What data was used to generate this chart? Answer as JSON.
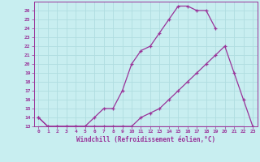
{
  "xlabel": "Windchill (Refroidissement éolien,°C)",
  "xlim": [
    -0.5,
    23.5
  ],
  "ylim": [
    13,
    27
  ],
  "yticks": [
    13,
    14,
    15,
    16,
    17,
    18,
    19,
    20,
    21,
    22,
    23,
    24,
    25,
    26
  ],
  "xticks": [
    0,
    1,
    2,
    3,
    4,
    5,
    6,
    7,
    8,
    9,
    10,
    11,
    12,
    13,
    14,
    15,
    16,
    17,
    18,
    19,
    20,
    21,
    22,
    23
  ],
  "bg_color": "#c8eef0",
  "line_color": "#993399",
  "grid_color": "#b0dde0",
  "line1_x": [
    0,
    1,
    2,
    3,
    4,
    5,
    6,
    7,
    8,
    9,
    10,
    11,
    12,
    13,
    14,
    15,
    16,
    17,
    18,
    19
  ],
  "line1_y": [
    14,
    13,
    13,
    13,
    13,
    13,
    14,
    15,
    15,
    17,
    20,
    21.5,
    22,
    23.5,
    25,
    26.5,
    26.5,
    26,
    26,
    24
  ],
  "line2_x": [
    0,
    1,
    2,
    3,
    4,
    5,
    6,
    7,
    8,
    9,
    10,
    11,
    12,
    13,
    14,
    15,
    16,
    17,
    18,
    19,
    20,
    21,
    22,
    23
  ],
  "line2_y": [
    14,
    13,
    13,
    13,
    13,
    13,
    13,
    13,
    13,
    13,
    13,
    14,
    14.5,
    15,
    16,
    17,
    18,
    19,
    20,
    21,
    22,
    19,
    16,
    13
  ],
  "line3_x": [
    0,
    1,
    2,
    3,
    4,
    5,
    6,
    7,
    8,
    9,
    10,
    22
  ],
  "line3_y": [
    13,
    13,
    13,
    13,
    13,
    13,
    13,
    13,
    13,
    13,
    13,
    13
  ]
}
